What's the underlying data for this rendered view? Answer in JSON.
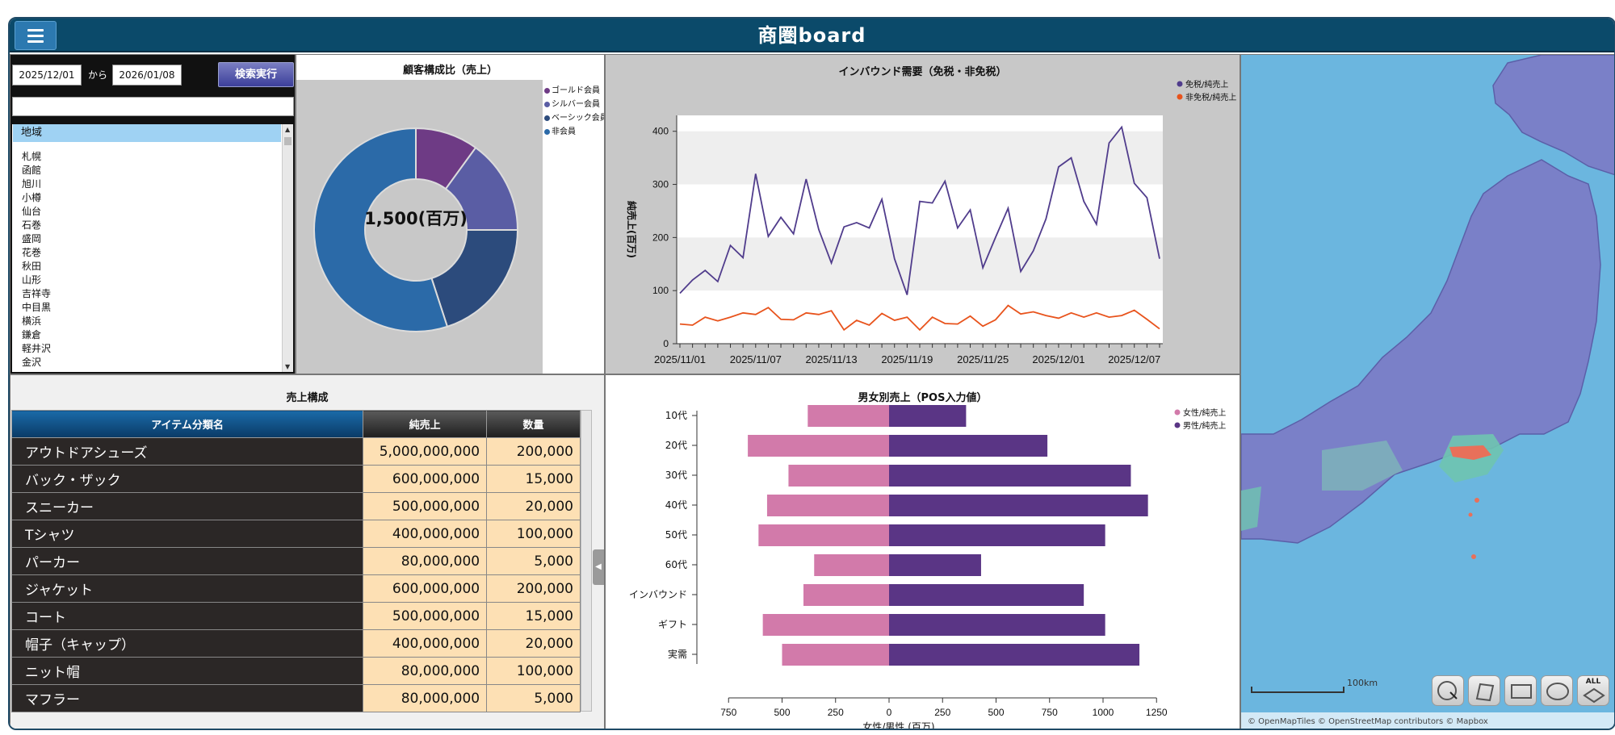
{
  "header": {
    "title": "商圏board",
    "menu_icon": "hamburger-icon"
  },
  "search": {
    "date_from": "2025/12/01",
    "date_sep": "から",
    "date_to": "2026/01/08",
    "button_label": "検索実行",
    "keyword_value": "",
    "list_header": "地域",
    "regions": [
      "札幌",
      "函館",
      "旭川",
      "小樽",
      "仙台",
      "石巻",
      "盛岡",
      "花巻",
      "秋田",
      "山形",
      "吉祥寺",
      "中目黒",
      "横浜",
      "鎌倉",
      "軽井沢",
      "金沢"
    ]
  },
  "donut": {
    "title": "顧客構成比（売上）",
    "center_label": "1,500(百万)",
    "legend": [
      {
        "label": "ゴールド会員",
        "color": "#6e3b85"
      },
      {
        "label": "シルバー会員",
        "color": "#5a5da4"
      },
      {
        "label": "ベーシック会員",
        "color": "#2c4b7c"
      },
      {
        "label": "非会員",
        "color": "#2b6aa8"
      }
    ],
    "values": [
      150,
      225,
      300,
      825
    ]
  },
  "line": {
    "title": "インバウンド需要（免税・非免税）",
    "ylabel": "純売上(百万)",
    "yticks": [
      0,
      100,
      200,
      300,
      400
    ],
    "ylim": [
      0,
      430
    ],
    "xticks": [
      "2025/11/01",
      "2025/11/07",
      "2025/11/13",
      "2025/11/19",
      "2025/11/25",
      "2025/12/01",
      "2025/12/07"
    ],
    "legend": [
      {
        "label": "免税/純売上",
        "color": "#503c8c"
      },
      {
        "label": "非免税/純売上",
        "color": "#e8531c"
      }
    ],
    "series": [
      {
        "name": "免税/純売上",
        "color": "#503c8c",
        "values": [
          95,
          120,
          138,
          117,
          185,
          162,
          320,
          202,
          238,
          207,
          310,
          215,
          152,
          220,
          228,
          218,
          272,
          160,
          92,
          268,
          265,
          306,
          218,
          252,
          143,
          200,
          255,
          136,
          175,
          235,
          333,
          350,
          268,
          225,
          378,
          408,
          302,
          275,
          160
        ]
      },
      {
        "name": "非免税/純売上",
        "color": "#e8531c",
        "values": [
          37,
          35,
          50,
          43,
          50,
          58,
          55,
          68,
          46,
          45,
          58,
          55,
          62,
          26,
          44,
          35,
          57,
          44,
          50,
          26,
          50,
          38,
          37,
          52,
          33,
          45,
          72,
          56,
          60,
          53,
          48,
          58,
          50,
          58,
          50,
          53,
          63,
          46,
          28
        ]
      }
    ]
  },
  "sales": {
    "title": "売上構成",
    "headers": [
      "アイテム分類名",
      "純売上",
      "数量"
    ],
    "rows": [
      [
        "アウトドアシューズ",
        "5,000,000,000",
        "200,000"
      ],
      [
        "バック・ザック",
        "600,000,000",
        "15,000"
      ],
      [
        "スニーカー",
        "500,000,000",
        "20,000"
      ],
      [
        "Tシャツ",
        "400,000,000",
        "100,000"
      ],
      [
        "パーカー",
        "80,000,000",
        "5,000"
      ],
      [
        "ジャケット",
        "600,000,000",
        "200,000"
      ],
      [
        "コート",
        "500,000,000",
        "15,000"
      ],
      [
        "帽子（キャップ）",
        "400,000,000",
        "20,000"
      ],
      [
        "ニット帽",
        "80,000,000",
        "100,000"
      ],
      [
        "マフラー",
        "80,000,000",
        "5,000"
      ]
    ]
  },
  "bars": {
    "title": "男女別売上（POS入力値）",
    "xlabel": "女性/男性 (百万)",
    "xticks": [
      "750",
      "500",
      "250",
      "0",
      "250",
      "500",
      "750",
      "1000",
      "1250"
    ],
    "legend": [
      {
        "label": "女性/純売上",
        "color": "#d27aaa"
      },
      {
        "label": "男性/純売上",
        "color": "#5a3585"
      }
    ],
    "categories": [
      "10代",
      "20代",
      "30代",
      "40代",
      "50代",
      "60代",
      "インバウンド",
      "ギフト",
      "実需"
    ],
    "female": [
      380,
      660,
      470,
      570,
      610,
      350,
      400,
      590,
      500
    ],
    "male": [
      360,
      740,
      1130,
      1210,
      1010,
      430,
      910,
      1010,
      1170
    ]
  },
  "map": {
    "scale_label": "100km",
    "attribution": "© OpenMapTiles © OpenStreetMap contributors © Mapbox",
    "tools": [
      "point-select",
      "polygon-select",
      "rect-select",
      "circle-select",
      "all-select"
    ],
    "all_label": "ALL"
  }
}
